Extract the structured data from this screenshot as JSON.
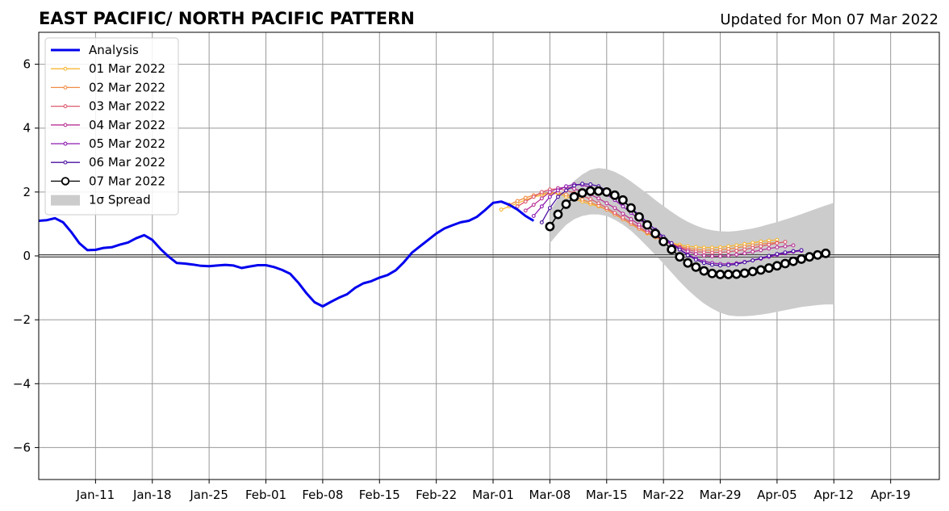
{
  "chart_data": {
    "type": "line",
    "title": "EAST PACIFIC/ NORTH PACIFIC PATTERN",
    "subtitle": "Updated for Mon 07 Mar 2022",
    "x_start_date": "2022-01-04",
    "xlim": [
      "2022-01-04",
      "2022-04-25"
    ],
    "ylim": [
      -7,
      7
    ],
    "xticks": [
      {
        "date": "2022-01-11",
        "label": "Jan-11"
      },
      {
        "date": "2022-01-18",
        "label": "Jan-18"
      },
      {
        "date": "2022-01-25",
        "label": "Jan-25"
      },
      {
        "date": "2022-02-01",
        "label": "Feb-01"
      },
      {
        "date": "2022-02-08",
        "label": "Feb-08"
      },
      {
        "date": "2022-02-15",
        "label": "Feb-15"
      },
      {
        "date": "2022-02-22",
        "label": "Feb-22"
      },
      {
        "date": "2022-03-01",
        "label": "Mar-01"
      },
      {
        "date": "2022-03-08",
        "label": "Mar-08"
      },
      {
        "date": "2022-03-15",
        "label": "Mar-15"
      },
      {
        "date": "2022-03-22",
        "label": "Mar-22"
      },
      {
        "date": "2022-03-29",
        "label": "Mar-29"
      },
      {
        "date": "2022-04-05",
        "label": "Apr-05"
      },
      {
        "date": "2022-04-12",
        "label": "Apr-12"
      },
      {
        "date": "2022-04-19",
        "label": "Apr-19"
      }
    ],
    "yticks": [
      {
        "value": -6,
        "label": "−6"
      },
      {
        "value": -4,
        "label": "−4"
      },
      {
        "value": -2,
        "label": "−2"
      },
      {
        "value": 0,
        "label": "0"
      },
      {
        "value": 2,
        "label": "2"
      },
      {
        "value": 4,
        "label": "4"
      },
      {
        "value": 6,
        "label": "6"
      }
    ],
    "grid": true,
    "legend_position": "top-left",
    "analysis": {
      "name": "Analysis",
      "color": "#0000ee",
      "start": "2022-01-04",
      "values": [
        1.1,
        1.12,
        1.18,
        1.05,
        0.75,
        0.4,
        0.18,
        0.19,
        0.25,
        0.27,
        0.35,
        0.42,
        0.55,
        0.65,
        0.5,
        0.22,
        -0.02,
        -0.22,
        -0.24,
        -0.27,
        -0.31,
        -0.32,
        -0.3,
        -0.28,
        -0.3,
        -0.38,
        -0.33,
        -0.29,
        -0.29,
        -0.35,
        -0.44,
        -0.56,
        -0.84,
        -1.17,
        -1.45,
        -1.58,
        -1.44,
        -1.31,
        -1.2,
        -1.0,
        -0.86,
        -0.79,
        -0.68,
        -0.6,
        -0.45,
        -0.2,
        0.1,
        0.3,
        0.5,
        0.7,
        0.86,
        0.96,
        1.05,
        1.1,
        1.22,
        1.43,
        1.66,
        1.7,
        1.6,
        1.45,
        1.25,
        1.1
      ]
    },
    "forecasts": [
      {
        "name": "01 Mar 2022",
        "color": "#f7b733",
        "start": "2022-03-02",
        "values": [
          1.45,
          1.55,
          1.65,
          1.75,
          1.85,
          1.9,
          1.95,
          1.95,
          1.85,
          1.78,
          1.7,
          1.62,
          1.55,
          1.45,
          1.3,
          1.15,
          1.0,
          0.85,
          0.7,
          0.58,
          0.47,
          0.4,
          0.35,
          0.3,
          0.28,
          0.26,
          0.26,
          0.27,
          0.3,
          0.33,
          0.37,
          0.41,
          0.45,
          0.48,
          0.5
        ]
      },
      {
        "name": "02 Mar 2022",
        "color": "#f08d45",
        "start": "2022-03-03",
        "values": [
          1.6,
          1.72,
          1.82,
          1.9,
          1.95,
          1.98,
          1.98,
          1.92,
          1.85,
          1.76,
          1.67,
          1.57,
          1.45,
          1.3,
          1.15,
          1.0,
          0.85,
          0.72,
          0.6,
          0.48,
          0.38,
          0.3,
          0.24,
          0.2,
          0.18,
          0.18,
          0.19,
          0.22,
          0.25,
          0.29,
          0.33,
          0.37,
          0.4,
          0.42
        ]
      },
      {
        "name": "03 Mar 2022",
        "color": "#dd5a6e",
        "start": "2022-03-04",
        "values": [
          1.55,
          1.7,
          1.85,
          2.0,
          2.08,
          2.1,
          2.05,
          1.97,
          1.88,
          1.78,
          1.65,
          1.5,
          1.35,
          1.2,
          1.05,
          0.9,
          0.75,
          0.6,
          0.48,
          0.37,
          0.27,
          0.19,
          0.14,
          0.11,
          0.1,
          0.11,
          0.13,
          0.16,
          0.2,
          0.25,
          0.3,
          0.35,
          0.4,
          0.44
        ]
      },
      {
        "name": "04 Mar 2022",
        "color": "#b83296",
        "start": "2022-03-05",
        "values": [
          1.42,
          1.6,
          1.8,
          2.0,
          2.12,
          2.15,
          2.1,
          2.02,
          1.92,
          1.8,
          1.65,
          1.5,
          1.32,
          1.15,
          0.98,
          0.82,
          0.65,
          0.5,
          0.37,
          0.25,
          0.14,
          0.06,
          0.01,
          -0.01,
          -0.01,
          0.01,
          0.04,
          0.08,
          0.13,
          0.18,
          0.23,
          0.27,
          0.3,
          0.33
        ]
      },
      {
        "name": "05 Mar 2022",
        "color": "#8e1bb0",
        "start": "2022-03-06",
        "values": [
          1.25,
          1.55,
          1.85,
          2.05,
          2.18,
          2.24,
          2.22,
          2.15,
          2.05,
          1.92,
          1.75,
          1.55,
          1.35,
          1.15,
          0.95,
          0.75,
          0.55,
          0.37,
          0.2,
          0.05,
          -0.08,
          -0.17,
          -0.22,
          -0.25,
          -0.25,
          -0.23,
          -0.19,
          -0.14,
          -0.09,
          -0.03,
          0.03,
          0.08,
          0.13,
          0.16
        ]
      },
      {
        "name": "06 Mar 2022",
        "color": "#4a0fa0",
        "start": "2022-03-07",
        "values": [
          1.05,
          1.5,
          1.85,
          2.05,
          2.2,
          2.26,
          2.24,
          2.18,
          2.05,
          1.9,
          1.72,
          1.5,
          1.28,
          1.05,
          0.82,
          0.6,
          0.4,
          0.2,
          0.02,
          -0.12,
          -0.22,
          -0.28,
          -0.3,
          -0.29,
          -0.26,
          -0.2,
          -0.14,
          -0.07,
          0.0,
          0.06,
          0.11,
          0.15,
          0.18
        ]
      },
      {
        "name": "07 Mar 2022",
        "color": "#000000",
        "start": "2022-03-08",
        "values": [
          0.92,
          1.3,
          1.62,
          1.85,
          1.97,
          2.03,
          2.03,
          2.0,
          1.9,
          1.75,
          1.5,
          1.22,
          0.97,
          0.7,
          0.45,
          0.2,
          -0.03,
          -0.22,
          -0.35,
          -0.47,
          -0.55,
          -0.58,
          -0.58,
          -0.57,
          -0.54,
          -0.49,
          -0.44,
          -0.38,
          -0.31,
          -0.24,
          -0.17,
          -0.1,
          -0.03,
          0.03,
          0.08
        ]
      }
    ],
    "spread": {
      "name": "1σ Spread",
      "color": "#cccccc",
      "start": "2022-03-08",
      "upper": [
        1.4,
        1.8,
        2.1,
        2.35,
        2.55,
        2.7,
        2.75,
        2.72,
        2.63,
        2.5,
        2.33,
        2.14,
        1.95,
        1.75,
        1.56,
        1.38,
        1.21,
        1.07,
        0.95,
        0.86,
        0.8,
        0.77,
        0.76,
        0.78,
        0.82,
        0.86,
        0.92,
        0.99,
        1.06,
        1.14,
        1.22,
        1.31,
        1.4,
        1.49,
        1.58,
        1.66
      ],
      "lower": [
        0.4,
        0.7,
        0.97,
        1.15,
        1.25,
        1.3,
        1.3,
        1.25,
        1.13,
        0.98,
        0.79,
        0.55,
        0.29,
        0.03,
        -0.24,
        -0.52,
        -0.8,
        -1.06,
        -1.29,
        -1.49,
        -1.65,
        -1.78,
        -1.86,
        -1.89,
        -1.89,
        -1.87,
        -1.84,
        -1.8,
        -1.75,
        -1.7,
        -1.65,
        -1.6,
        -1.57,
        -1.54,
        -1.52,
        -1.52
      ]
    }
  }
}
